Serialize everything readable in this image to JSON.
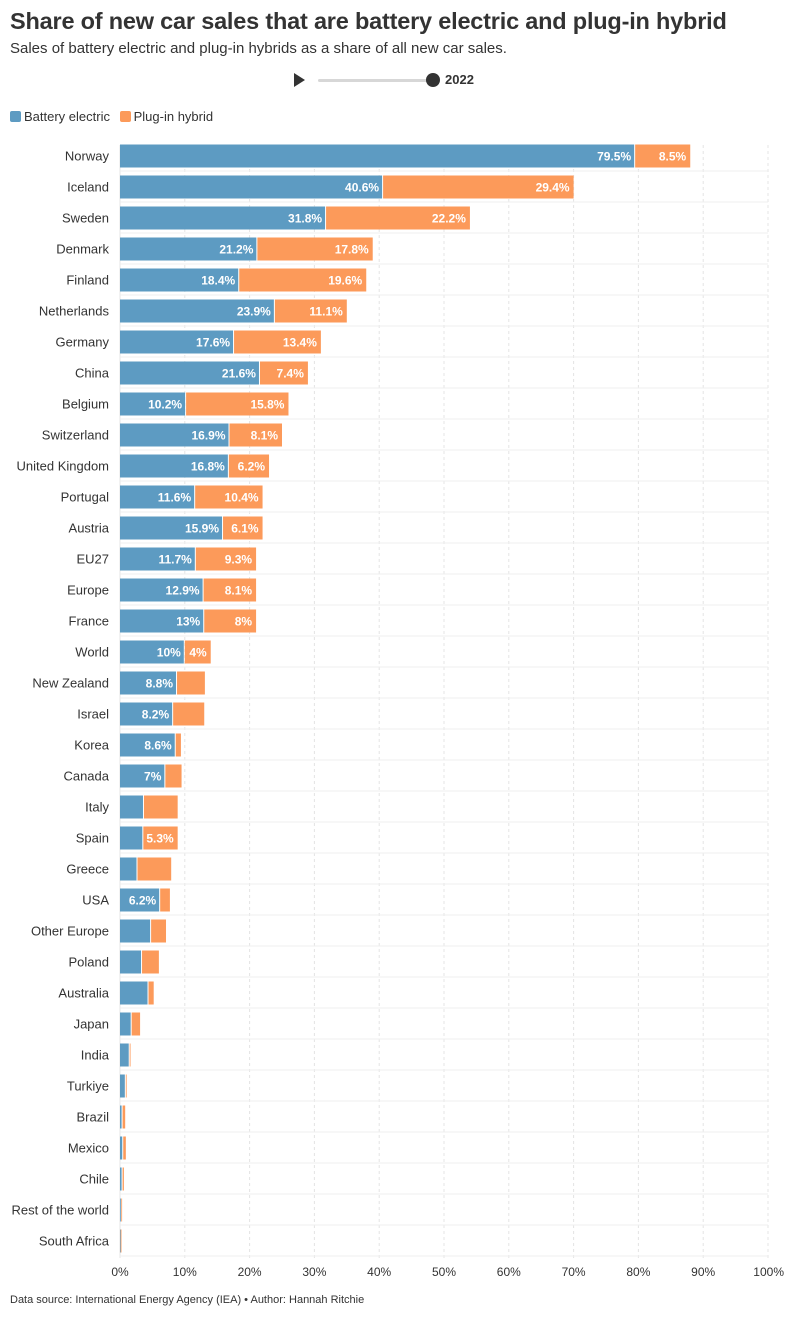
{
  "header": {
    "title": "Share of new car sales that are battery electric and plug-in hybrid",
    "subtitle": "Sales of battery electric and plug-in hybrids as a share of all new car sales."
  },
  "player": {
    "year": "2022"
  },
  "colors": {
    "battery": "#5d9bc2",
    "phev": "#fc9a5a",
    "grid": "#e4e4e4",
    "label": "#ffffff"
  },
  "chart_data": {
    "type": "bar",
    "orientation": "horizontal",
    "stacked": true,
    "categories": [
      "Norway",
      "Iceland",
      "Sweden",
      "Denmark",
      "Finland",
      "Netherlands",
      "Germany",
      "China",
      "Belgium",
      "Switzerland",
      "United Kingdom",
      "Portugal",
      "Austria",
      "EU27",
      "Europe",
      "France",
      "World",
      "New Zealand",
      "Israel",
      "Korea",
      "Canada",
      "Italy",
      "Spain",
      "Greece",
      "USA",
      "Other Europe",
      "Poland",
      "Australia",
      "Japan",
      "India",
      "Turkiye",
      "Brazil",
      "Mexico",
      "Chile",
      "Rest of the world",
      "South Africa"
    ],
    "series": [
      {
        "name": "Battery electric",
        "values": [
          79.5,
          40.6,
          31.8,
          21.2,
          18.4,
          23.9,
          17.6,
          21.6,
          10.2,
          16.9,
          16.8,
          11.6,
          15.9,
          11.7,
          12.9,
          13,
          10,
          8.8,
          8.2,
          8.6,
          7,
          3.7,
          3.6,
          2.7,
          6.2,
          4.8,
          3.4,
          4.4,
          1.8,
          1.5,
          0.9,
          0.4,
          0.5,
          0.4,
          0.2,
          0.1
        ],
        "labels": [
          "79.5%",
          "40.6%",
          "31.8%",
          "21.2%",
          "18.4%",
          "23.9%",
          "17.6%",
          "21.6%",
          "10.2%",
          "16.9%",
          "16.8%",
          "11.6%",
          "15.9%",
          "11.7%",
          "12.9%",
          "13%",
          "10%",
          "8.8%",
          "8.2%",
          "8.6%",
          "7%",
          "",
          "",
          "",
          "6.2%",
          "",
          "",
          "",
          "",
          "",
          "",
          "",
          "",
          "",
          "",
          ""
        ]
      },
      {
        "name": "Plug-in hybrid",
        "values": [
          8.5,
          29.4,
          22.2,
          17.8,
          19.6,
          11.1,
          13.4,
          7.4,
          15.8,
          8.1,
          6.2,
          10.4,
          6.1,
          9.3,
          8.1,
          8,
          4,
          4.3,
          4.8,
          0.8,
          2.5,
          5.2,
          5.3,
          5.2,
          1.5,
          2.3,
          2.6,
          0.8,
          1.3,
          0.05,
          0.05,
          0.4,
          0.4,
          0.2,
          0.05,
          0.05
        ],
        "labels": [
          "8.5%",
          "29.4%",
          "22.2%",
          "17.8%",
          "19.6%",
          "11.1%",
          "13.4%",
          "7.4%",
          "15.8%",
          "8.1%",
          "6.2%",
          "10.4%",
          "6.1%",
          "9.3%",
          "8.1%",
          "8%",
          "4%",
          "",
          "",
          "",
          "",
          "",
          "5.3%",
          "",
          "",
          "",
          "",
          "",
          "",
          "",
          "",
          "",
          "",
          "",
          "",
          ""
        ]
      }
    ],
    "xlim": [
      0,
      100
    ],
    "xticks": [
      "0%",
      "10%",
      "20%",
      "30%",
      "40%",
      "50%",
      "60%",
      "70%",
      "80%",
      "90%",
      "100%"
    ],
    "grid": true,
    "legend_position": "top-left"
  },
  "footer": {
    "source": "Data source: International Energy Agency (IEA) • Author: Hannah Ritchie"
  }
}
